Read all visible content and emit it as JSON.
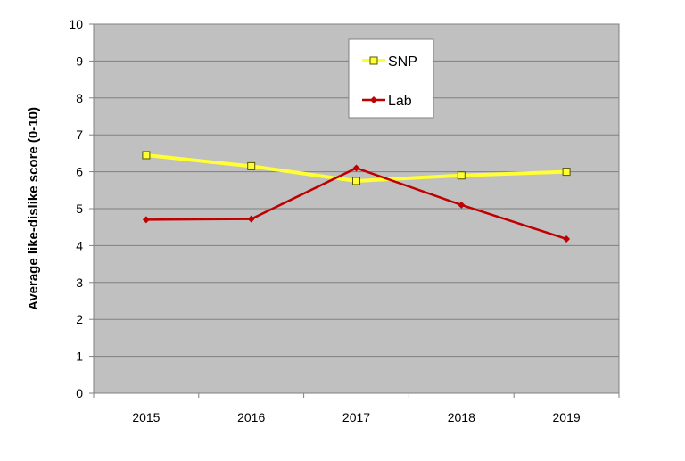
{
  "chart_data": {
    "type": "line",
    "title": "",
    "xlabel": "",
    "ylabel": "Average like-dislike score (0-10)",
    "categories": [
      "2015",
      "2016",
      "2017",
      "2018",
      "2019"
    ],
    "ylim": [
      0,
      10
    ],
    "yticks": [
      "0",
      "1",
      "2",
      "3",
      "4",
      "5",
      "6",
      "7",
      "8",
      "9",
      "10"
    ],
    "grid": true,
    "legend": "top-center",
    "background": "#c0c0c0",
    "series": [
      {
        "name": "SNP",
        "values": [
          6.45,
          6.15,
          5.75,
          5.9,
          6.0
        ],
        "color": "#ffff33",
        "marker": "square"
      },
      {
        "name": "Lab",
        "values": [
          4.7,
          4.72,
          6.1,
          5.1,
          4.18
        ],
        "color": "#c00000",
        "marker": "diamond"
      }
    ]
  }
}
